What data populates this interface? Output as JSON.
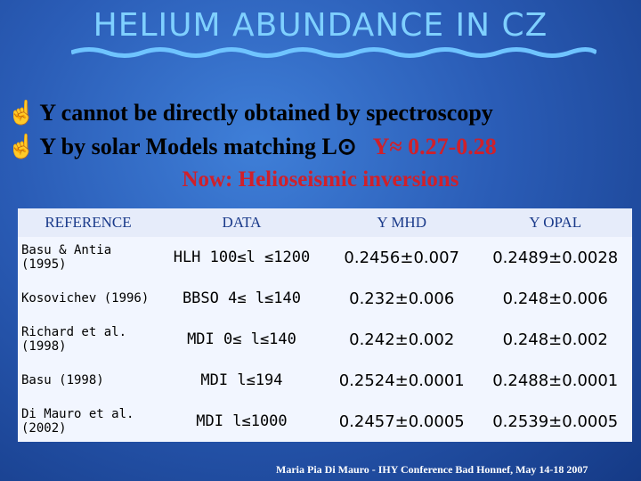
{
  "header": {
    "title": "HELIUM ABUNDANCE IN CZ"
  },
  "bullets": [
    {
      "text": "Y cannot be directly obtained by spectroscopy"
    },
    {
      "text": "Y by solar Models matching L⊙",
      "highlight": "Y≈ 0.27-0.28"
    }
  ],
  "note": "Now: Helioseismic inversions",
  "table": {
    "headers": [
      "REFERENCE",
      "DATA",
      "Y MHD",
      "Y OPAL"
    ],
    "rows": [
      [
        "Basu & Antia (1995)",
        "HLH 100≤l ≤1200",
        "0.2456±0.007",
        "0.2489±0.0028"
      ],
      [
        "Kosovichev (1996)",
        "BBSO 4≤ l≤140",
        "0.232±0.006",
        "0.248±0.006"
      ],
      [
        "Richard et al. (1998)",
        "MDI 0≤ l≤140",
        "0.242±0.002",
        "0.248±0.002"
      ],
      [
        "Basu (1998)",
        "MDI l≤194",
        "0.2524±0.0001",
        "0.2488±0.0001"
      ],
      [
        "Di Mauro et al. (2002)",
        "MDI l≤1000",
        "0.2457±0.0005",
        "0.2539±0.0005"
      ]
    ]
  },
  "footer": "Maria Pia Di Mauro - IHY Conference  Bad Honnef, May 14-18 2007"
}
